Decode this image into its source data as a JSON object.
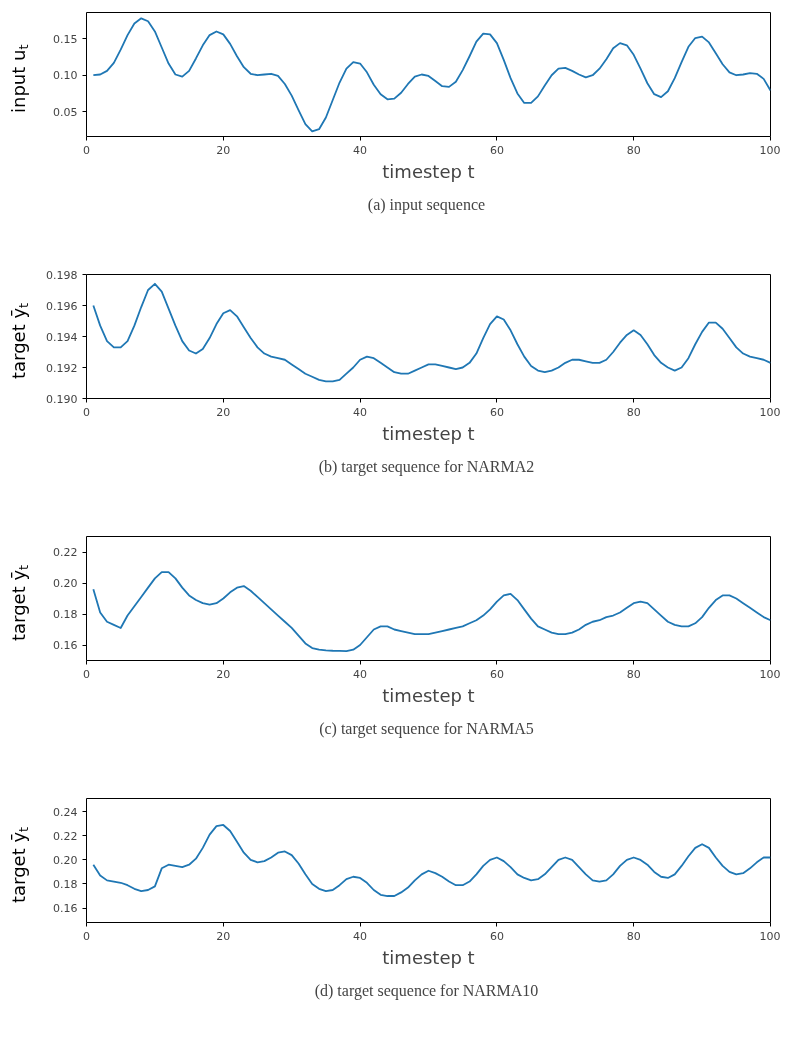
{
  "chart_data": [
    {
      "type": "line",
      "xlabel": "timestep t",
      "ylabel": "input u$_{t}$",
      "annotations": [
        "(a)  input sequence"
      ],
      "xlim": [
        0,
        100
      ],
      "xticks": [
        0,
        20,
        40,
        60,
        80,
        100
      ],
      "ylim": [
        0.016,
        0.186
      ],
      "yticks": [
        0.05,
        {
          "value": 0.1,
          "label": "0.10"
        },
        0.15
      ],
      "x": [
        1,
        2,
        3,
        4,
        5,
        6,
        7,
        8,
        9,
        10,
        11,
        12,
        13,
        14,
        15,
        16,
        17,
        18,
        19,
        20,
        21,
        22,
        23,
        24,
        25,
        26,
        27,
        28,
        29,
        30,
        31,
        32,
        33,
        34,
        35,
        36,
        37,
        38,
        39,
        40,
        41,
        42,
        43,
        44,
        45,
        46,
        47,
        48,
        49,
        50,
        51,
        52,
        53,
        54,
        55,
        56,
        57,
        58,
        59,
        60,
        61,
        62,
        63,
        64,
        65,
        66,
        67,
        68,
        69,
        70,
        71,
        72,
        73,
        74,
        75,
        76,
        77,
        78,
        79,
        80,
        81,
        82,
        83,
        84,
        85,
        86,
        87,
        88,
        89,
        90,
        91,
        92,
        93,
        94,
        95,
        96,
        97,
        98,
        99,
        100
      ],
      "series": [
        {
          "color": "#1f77b4",
          "values": [
            0.1,
            0.101,
            0.106,
            0.117,
            0.135,
            0.155,
            0.171,
            0.178,
            0.174,
            0.16,
            0.138,
            0.116,
            0.101,
            0.098,
            0.106,
            0.123,
            0.141,
            0.155,
            0.16,
            0.156,
            0.143,
            0.126,
            0.111,
            0.102,
            0.1,
            0.101,
            0.102,
            0.099,
            0.088,
            0.072,
            0.052,
            0.033,
            0.023,
            0.026,
            0.042,
            0.066,
            0.09,
            0.109,
            0.118,
            0.116,
            0.104,
            0.087,
            0.074,
            0.067,
            0.068,
            0.076,
            0.088,
            0.098,
            0.101,
            0.099,
            0.092,
            0.085,
            0.084,
            0.091,
            0.107,
            0.126,
            0.146,
            0.157,
            0.156,
            0.144,
            0.121,
            0.096,
            0.075,
            0.062,
            0.062,
            0.071,
            0.086,
            0.1,
            0.109,
            0.11,
            0.106,
            0.101,
            0.097,
            0.1,
            0.109,
            0.122,
            0.137,
            0.144,
            0.141,
            0.128,
            0.109,
            0.089,
            0.074,
            0.07,
            0.078,
            0.096,
            0.118,
            0.139,
            0.151,
            0.153,
            0.145,
            0.13,
            0.115,
            0.104,
            0.1,
            0.101,
            0.103,
            0.102,
            0.095,
            0.079
          ]
        }
      ]
    },
    {
      "type": "line",
      "xlabel": "timestep t",
      "ylabel": "target ȳ$_{t}$",
      "annotations": [
        "(b)  target sequence for NARMA2"
      ],
      "xlim": [
        0,
        100
      ],
      "xticks": [
        0,
        20,
        40,
        60,
        80,
        100
      ],
      "ylim": [
        0.19,
        0.198
      ],
      "yticks": [
        {
          "value": 0.19,
          "label": "0.190"
        },
        0.192,
        0.194,
        0.196,
        0.198
      ],
      "x": [
        1,
        2,
        3,
        4,
        5,
        6,
        7,
        8,
        9,
        10,
        11,
        12,
        13,
        14,
        15,
        16,
        17,
        18,
        19,
        20,
        21,
        22,
        23,
        24,
        25,
        26,
        27,
        28,
        29,
        30,
        31,
        32,
        33,
        34,
        35,
        36,
        37,
        38,
        39,
        40,
        41,
        42,
        43,
        44,
        45,
        46,
        47,
        48,
        49,
        50,
        51,
        52,
        53,
        54,
        55,
        56,
        57,
        58,
        59,
        60,
        61,
        62,
        63,
        64,
        65,
        66,
        67,
        68,
        69,
        70,
        71,
        72,
        73,
        74,
        75,
        76,
        77,
        78,
        79,
        80,
        81,
        82,
        83,
        84,
        85,
        86,
        87,
        88,
        89,
        90,
        91,
        92,
        93,
        94,
        95,
        96,
        97,
        98,
        99,
        100
      ],
      "series": [
        {
          "color": "#1f77b4",
          "values": [
            0.196,
            0.1947,
            0.1937,
            0.1933,
            0.1933,
            0.1937,
            0.1947,
            0.1959,
            0.197,
            0.1974,
            0.1969,
            0.1958,
            0.1947,
            0.1937,
            0.1931,
            0.1929,
            0.1932,
            0.1939,
            0.1948,
            0.1955,
            0.1957,
            0.1953,
            0.1946,
            0.1939,
            0.1933,
            0.1929,
            0.1927,
            0.1926,
            0.1925,
            0.1922,
            0.1919,
            0.1916,
            0.1914,
            0.1912,
            0.1911,
            0.1911,
            0.1912,
            0.1916,
            0.192,
            0.1925,
            0.1927,
            0.1926,
            0.1923,
            0.192,
            0.1917,
            0.1916,
            0.1916,
            0.1918,
            0.192,
            0.1922,
            0.1922,
            0.1921,
            0.192,
            0.1919,
            0.192,
            0.1923,
            0.1929,
            0.1939,
            0.1948,
            0.1953,
            0.1951,
            0.1944,
            0.1935,
            0.1927,
            0.1921,
            0.1918,
            0.1917,
            0.1918,
            0.192,
            0.1923,
            0.1925,
            0.1925,
            0.1924,
            0.1923,
            0.1923,
            0.1925,
            0.193,
            0.1936,
            0.1941,
            0.1944,
            0.1941,
            0.1935,
            0.1928,
            0.1923,
            0.192,
            0.1918,
            0.192,
            0.1926,
            0.1935,
            0.1943,
            0.1949,
            0.1949,
            0.1945,
            0.1939,
            0.1933,
            0.1929,
            0.1927,
            0.1926,
            0.1925,
            0.1923
          ]
        }
      ]
    },
    {
      "type": "line",
      "xlabel": "timestep t",
      "ylabel": "target ȳ$_{t}$",
      "annotations": [
        "(c)  target sequence for NARMA5"
      ],
      "xlim": [
        0,
        100
      ],
      "xticks": [
        0,
        20,
        40,
        60,
        80,
        100
      ],
      "ylim": [
        0.15,
        0.23
      ],
      "yticks": [
        0.16,
        0.18,
        {
          "value": 0.2,
          "label": "0.20"
        },
        0.22
      ],
      "x": [
        1,
        2,
        3,
        4,
        5,
        6,
        7,
        8,
        9,
        10,
        11,
        12,
        13,
        14,
        15,
        16,
        17,
        18,
        19,
        20,
        21,
        22,
        23,
        24,
        25,
        26,
        27,
        28,
        29,
        30,
        31,
        32,
        33,
        34,
        35,
        36,
        37,
        38,
        39,
        40,
        41,
        42,
        43,
        44,
        45,
        46,
        47,
        48,
        49,
        50,
        51,
        52,
        53,
        54,
        55,
        56,
        57,
        58,
        59,
        60,
        61,
        62,
        63,
        64,
        65,
        66,
        67,
        68,
        69,
        70,
        71,
        72,
        73,
        74,
        75,
        76,
        77,
        78,
        79,
        80,
        81,
        82,
        83,
        84,
        85,
        86,
        87,
        88,
        89,
        90,
        91,
        92,
        93,
        94,
        95,
        96,
        97,
        98,
        99,
        100
      ],
      "series": [
        {
          "color": "#1f77b4",
          "values": [
            0.196,
            0.181,
            0.175,
            0.173,
            0.171,
            0.179,
            0.185,
            0.191,
            0.197,
            0.203,
            0.207,
            0.207,
            0.203,
            0.197,
            0.192,
            0.189,
            0.187,
            0.186,
            0.187,
            0.19,
            0.194,
            0.197,
            0.198,
            0.195,
            0.191,
            0.187,
            0.183,
            0.179,
            0.175,
            0.171,
            0.166,
            0.161,
            0.158,
            0.157,
            0.1565,
            0.1563,
            0.1562,
            0.156,
            0.157,
            0.16,
            0.165,
            0.17,
            0.172,
            0.172,
            0.17,
            0.169,
            0.168,
            0.167,
            0.167,
            0.167,
            0.168,
            0.169,
            0.17,
            0.171,
            0.172,
            0.174,
            0.176,
            0.179,
            0.183,
            0.188,
            0.192,
            0.193,
            0.189,
            0.183,
            0.177,
            0.172,
            0.17,
            0.168,
            0.167,
            0.167,
            0.168,
            0.17,
            0.173,
            0.175,
            0.176,
            0.178,
            0.179,
            0.181,
            0.184,
            0.187,
            0.188,
            0.187,
            0.183,
            0.179,
            0.175,
            0.173,
            0.172,
            0.172,
            0.174,
            0.178,
            0.184,
            0.189,
            0.192,
            0.192,
            0.19,
            0.187,
            0.184,
            0.181,
            0.178,
            0.176
          ]
        }
      ]
    },
    {
      "type": "line",
      "xlabel": "timestep t",
      "ylabel": "target ȳ$_{t}$",
      "annotations": [
        "(d)  target sequence for NARMA10"
      ],
      "xlim": [
        0,
        100
      ],
      "xticks": [
        0,
        20,
        40,
        60,
        80,
        100
      ],
      "ylim": [
        0.148,
        0.251
      ],
      "yticks": [
        0.16,
        0.18,
        {
          "value": 0.2,
          "label": "0.20"
        },
        0.22,
        0.24
      ],
      "x": [
        1,
        2,
        3,
        4,
        5,
        6,
        7,
        8,
        9,
        10,
        11,
        12,
        13,
        14,
        15,
        16,
        17,
        18,
        19,
        20,
        21,
        22,
        23,
        24,
        25,
        26,
        27,
        28,
        29,
        30,
        31,
        32,
        33,
        34,
        35,
        36,
        37,
        38,
        39,
        40,
        41,
        42,
        43,
        44,
        45,
        46,
        47,
        48,
        49,
        50,
        51,
        52,
        53,
        54,
        55,
        56,
        57,
        58,
        59,
        60,
        61,
        62,
        63,
        64,
        65,
        66,
        67,
        68,
        69,
        70,
        71,
        72,
        73,
        74,
        75,
        76,
        77,
        78,
        79,
        80,
        81,
        82,
        83,
        84,
        85,
        86,
        87,
        88,
        89,
        90,
        91,
        92,
        93,
        94,
        95,
        96,
        97,
        98,
        99,
        100
      ],
      "series": [
        {
          "color": "#1f77b4",
          "values": [
            0.196,
            0.187,
            0.183,
            0.182,
            0.181,
            0.179,
            0.176,
            0.174,
            0.175,
            0.178,
            0.193,
            0.196,
            0.195,
            0.194,
            0.196,
            0.201,
            0.21,
            0.221,
            0.228,
            0.229,
            0.224,
            0.215,
            0.206,
            0.2,
            0.198,
            0.199,
            0.202,
            0.206,
            0.207,
            0.204,
            0.197,
            0.188,
            0.18,
            0.176,
            0.174,
            0.175,
            0.179,
            0.184,
            0.186,
            0.185,
            0.181,
            0.175,
            0.171,
            0.17,
            0.17,
            0.173,
            0.177,
            0.183,
            0.188,
            0.191,
            0.189,
            0.186,
            0.182,
            0.179,
            0.179,
            0.182,
            0.188,
            0.195,
            0.2,
            0.202,
            0.199,
            0.194,
            0.188,
            0.185,
            0.183,
            0.184,
            0.188,
            0.194,
            0.2,
            0.202,
            0.2,
            0.194,
            0.188,
            0.183,
            0.182,
            0.183,
            0.188,
            0.195,
            0.2,
            0.202,
            0.2,
            0.196,
            0.19,
            0.186,
            0.185,
            0.188,
            0.195,
            0.203,
            0.21,
            0.213,
            0.21,
            0.202,
            0.195,
            0.19,
            0.188,
            0.189,
            0.193,
            0.198,
            0.202,
            0.202
          ]
        }
      ]
    }
  ]
}
